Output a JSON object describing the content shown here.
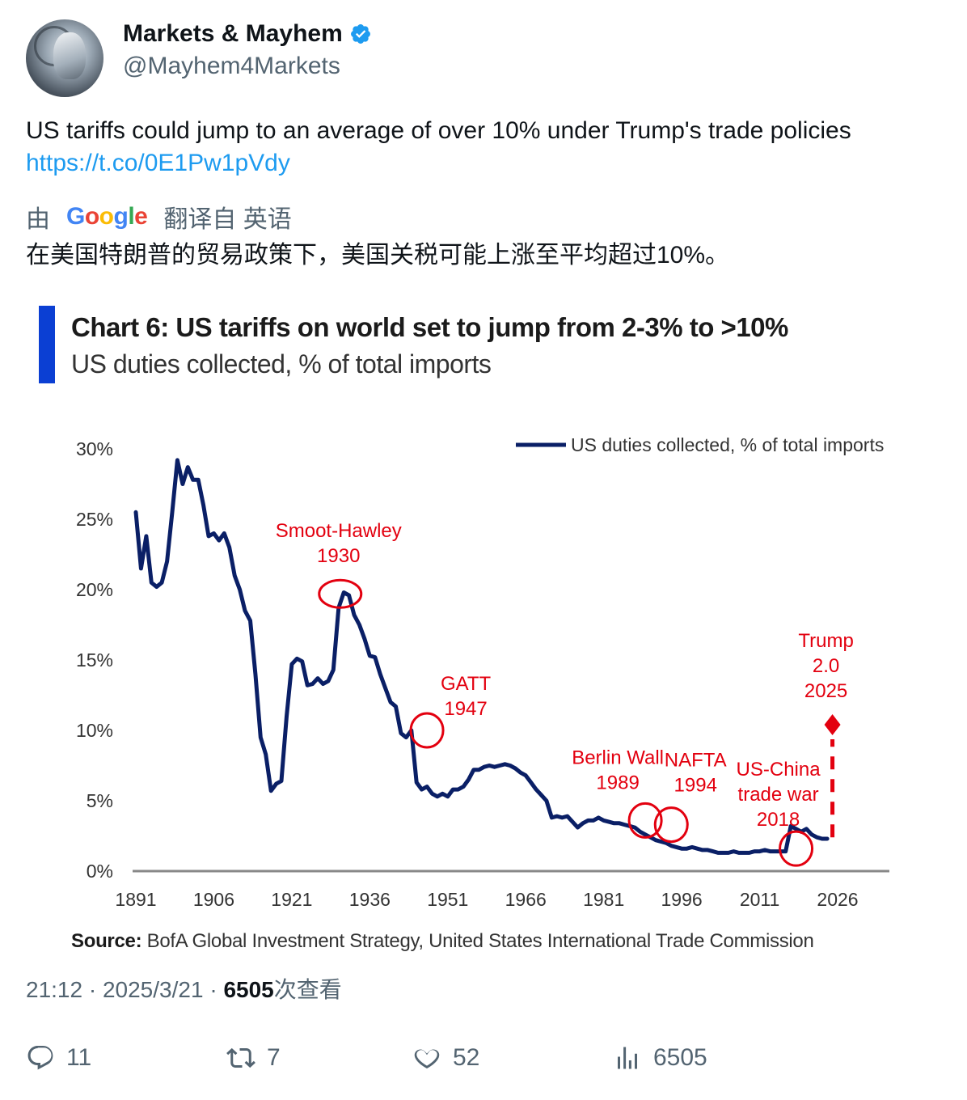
{
  "author": {
    "display_name": "Markets & Mayhem",
    "handle": "@Mayhem4Markets",
    "verified": true
  },
  "tweet": {
    "text": "US tariffs could jump to an average of over 10% under Trump's trade policies",
    "link": "https://t.co/0E1Pw1pVdy"
  },
  "translation": {
    "prefix": "由",
    "provider": "Google",
    "label": "翻译自 英语",
    "text": "在美国特朗普的贸易政策下，美国关税可能上涨至平均超过10%。"
  },
  "chart_data": {
    "type": "line",
    "title": "Chart 6: US tariffs on world set to jump from 2-3% to >10%",
    "subtitle": "US duties collected, % of total imports",
    "source_label": "Source:",
    "source_text": " BofA Global Investment Strategy, United States International Trade Commission",
    "legend": "US duties collected, % of total imports",
    "legend_position": "top-right",
    "xlim": [
      1891,
      2026
    ],
    "ylim": [
      0,
      30
    ],
    "x_ticks": [
      1891,
      1906,
      1921,
      1936,
      1951,
      1966,
      1981,
      1996,
      2011,
      2026
    ],
    "y_ticks": [
      0,
      5,
      10,
      15,
      20,
      25,
      30
    ],
    "y_tick_labels": [
      "0%",
      "5%",
      "10%",
      "15%",
      "20%",
      "25%",
      "30%"
    ],
    "series": [
      {
        "name": "US duties collected, % of total imports",
        "color": "#0a1f66",
        "x": [
          1891,
          1892,
          1893,
          1894,
          1895,
          1896,
          1897,
          1898,
          1899,
          1900,
          1901,
          1902,
          1903,
          1904,
          1905,
          1906,
          1907,
          1908,
          1909,
          1910,
          1911,
          1912,
          1913,
          1914,
          1915,
          1916,
          1917,
          1918,
          1919,
          1920,
          1921,
          1922,
          1923,
          1924,
          1925,
          1926,
          1927,
          1928,
          1929,
          1930,
          1931,
          1932,
          1933,
          1934,
          1935,
          1936,
          1937,
          1938,
          1939,
          1940,
          1941,
          1942,
          1943,
          1944,
          1945,
          1946,
          1947,
          1948,
          1949,
          1950,
          1951,
          1952,
          1953,
          1954,
          1955,
          1956,
          1957,
          1958,
          1959,
          1960,
          1961,
          1962,
          1963,
          1964,
          1965,
          1966,
          1967,
          1968,
          1969,
          1970,
          1971,
          1972,
          1973,
          1974,
          1975,
          1976,
          1977,
          1978,
          1979,
          1980,
          1981,
          1982,
          1983,
          1984,
          1985,
          1986,
          1987,
          1988,
          1989,
          1990,
          1991,
          1992,
          1993,
          1994,
          1995,
          1996,
          1997,
          1998,
          1999,
          2000,
          2001,
          2002,
          2003,
          2004,
          2005,
          2006,
          2007,
          2008,
          2009,
          2010,
          2011,
          2012,
          2013,
          2014,
          2015,
          2016,
          2017,
          2018,
          2019,
          2020,
          2021,
          2022,
          2023,
          2024
        ],
        "values": [
          25.5,
          21.5,
          23.8,
          20.5,
          20.2,
          20.5,
          22,
          25.5,
          29.2,
          27.5,
          28.7,
          27.8,
          27.8,
          26,
          23.8,
          24,
          23.5,
          24,
          23,
          21,
          20,
          18.5,
          17.8,
          14,
          9.5,
          8.3,
          5.7,
          6.2,
          6.4,
          11,
          14.7,
          15.1,
          14.9,
          13.2,
          13.3,
          13.7,
          13.3,
          13.5,
          14.3,
          18.7,
          19.8,
          19.6,
          18.2,
          17.5,
          16.5,
          15.3,
          15.2,
          14,
          13,
          12,
          11.7,
          9.8,
          9.5,
          10,
          6.3,
          5.8,
          6,
          5.5,
          5.3,
          5.5,
          5.3,
          5.8,
          5.8,
          6,
          6.5,
          7.2,
          7.2,
          7.4,
          7.5,
          7.4,
          7.5,
          7.6,
          7.5,
          7.3,
          7,
          6.8,
          6.3,
          5.8,
          5.4,
          5,
          3.8,
          3.9,
          3.8,
          3.9,
          3.5,
          3.1,
          3.4,
          3.6,
          3.6,
          3.8,
          3.6,
          3.5,
          3.4,
          3.4,
          3.3,
          3.2,
          3.1,
          2.8,
          2.6,
          2.4,
          2.2,
          2.1,
          2,
          1.8,
          1.7,
          1.6,
          1.6,
          1.7,
          1.6,
          1.5,
          1.5,
          1.4,
          1.3,
          1.3,
          1.3,
          1.4,
          1.3,
          1.3,
          1.3,
          1.4,
          1.4,
          1.5,
          1.4,
          1.4,
          1.4,
          1.4,
          3.2,
          3,
          2.8,
          3,
          2.6,
          2.4,
          2.3,
          2.3
        ]
      }
    ],
    "projection": {
      "x": 2025,
      "from": 2.4,
      "to": 10.4,
      "color": "#e3000f"
    },
    "annotations": [
      {
        "lines": [
          "Smoot-Hawley",
          "1930"
        ],
        "x": 1930,
        "y": 19.7
      },
      {
        "lines": [
          "GATT",
          "1947"
        ],
        "x": 1947,
        "y": 10
      },
      {
        "lines": [
          "Berlin Wall",
          "1989"
        ],
        "x": 1989,
        "y": 3.6
      },
      {
        "lines": [
          "NAFTA",
          "1994"
        ],
        "x": 1994,
        "y": 3.3
      },
      {
        "lines": [
          "US-China",
          "trade war",
          "2018"
        ],
        "x": 2018,
        "y": 1.6
      },
      {
        "lines": [
          "Trump",
          "2.0",
          "2025"
        ],
        "x": 2025,
        "y": 10.4
      }
    ],
    "annotation_color": "#e3000f"
  },
  "meta": {
    "time": "21:12",
    "date": "2025/3/21",
    "views_count": "6505",
    "views_label": "次查看"
  },
  "actions": {
    "replies": "11",
    "retweets": "7",
    "likes": "52",
    "views": "6505"
  }
}
